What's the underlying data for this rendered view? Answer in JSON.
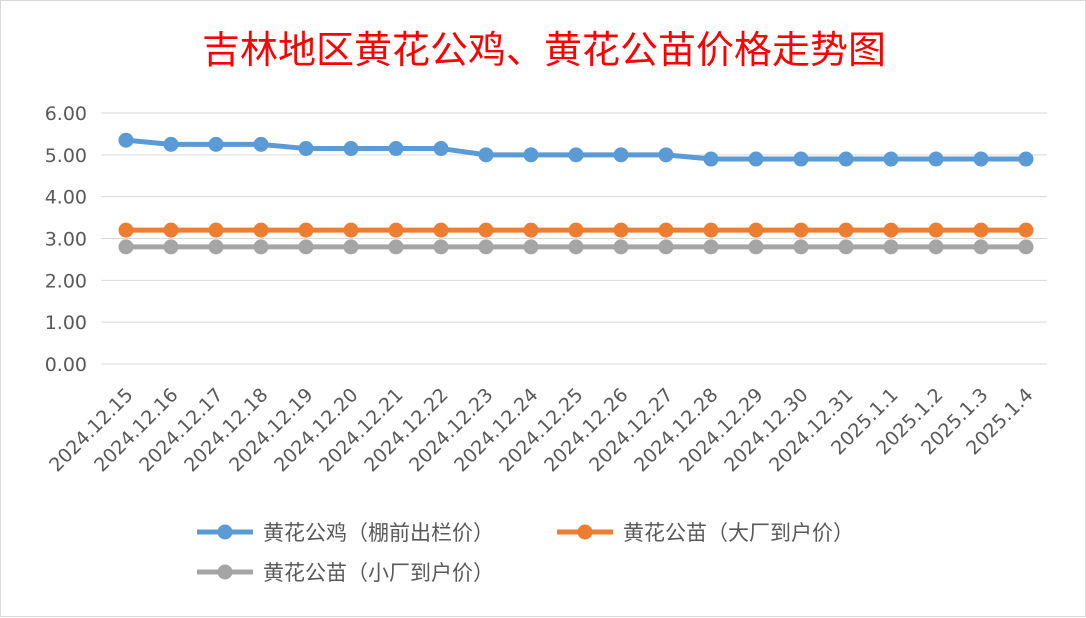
{
  "chart_data": {
    "type": "line",
    "title": "吉林地区黄花公鸡、黄花公苗价格走势图",
    "categories": [
      "2024.12.15",
      "2024.12.16",
      "2024.12.17",
      "2024.12.18",
      "2024.12.19",
      "2024.12.20",
      "2024.12.21",
      "2024.12.22",
      "2024.12.23",
      "2024.12.24",
      "2024.12.25",
      "2024.12.26",
      "2024.12.27",
      "2024.12.28",
      "2024.12.29",
      "2024.12.30",
      "2024.12.31",
      "2025.1.1",
      "2025.1.2",
      "2025.1.3",
      "2025.1.4"
    ],
    "y_ticks": [
      "0.00",
      "1.00",
      "2.00",
      "3.00",
      "4.00",
      "5.00",
      "6.00"
    ],
    "ylim": [
      0,
      6
    ],
    "grid": true,
    "legend_position": "bottom",
    "series": [
      {
        "name": "黄花公鸡（棚前出栏价）",
        "color": "#5b9bd5",
        "values": [
          5.35,
          5.25,
          5.25,
          5.25,
          5.15,
          5.15,
          5.15,
          5.15,
          5.0,
          5.0,
          5.0,
          5.0,
          5.0,
          4.9,
          4.9,
          4.9,
          4.9,
          4.9,
          4.9,
          4.9,
          4.9
        ]
      },
      {
        "name": "黄花公苗（大厂到户价）",
        "color": "#ed7d31",
        "values": [
          3.2,
          3.2,
          3.2,
          3.2,
          3.2,
          3.2,
          3.2,
          3.2,
          3.2,
          3.2,
          3.2,
          3.2,
          3.2,
          3.2,
          3.2,
          3.2,
          3.2,
          3.2,
          3.2,
          3.2,
          3.2
        ]
      },
      {
        "name": "黄花公苗（小厂到户价）",
        "color": "#a5a5a5",
        "values": [
          2.8,
          2.8,
          2.8,
          2.8,
          2.8,
          2.8,
          2.8,
          2.8,
          2.8,
          2.8,
          2.8,
          2.8,
          2.8,
          2.8,
          2.8,
          2.8,
          2.8,
          2.8,
          2.8,
          2.8,
          2.8
        ]
      }
    ]
  }
}
